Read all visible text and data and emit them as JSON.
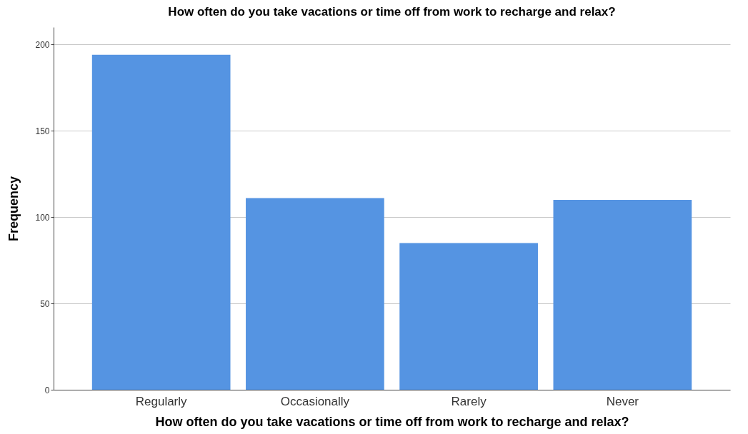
{
  "chart_data": {
    "type": "bar",
    "title": "How often do you take vacations or time off from work to recharge and relax?",
    "xlabel": "How often do you take vacations or time off from work to recharge and relax?",
    "ylabel": "Frequency",
    "categories": [
      "Regularly",
      "Occasionally",
      "Rarely",
      "Never"
    ],
    "values": [
      194,
      111,
      85,
      110
    ],
    "color": "#5594e2",
    "ylim": [
      0,
      210
    ],
    "yticks": [
      0,
      50,
      100,
      150,
      200
    ],
    "grid": "y"
  }
}
